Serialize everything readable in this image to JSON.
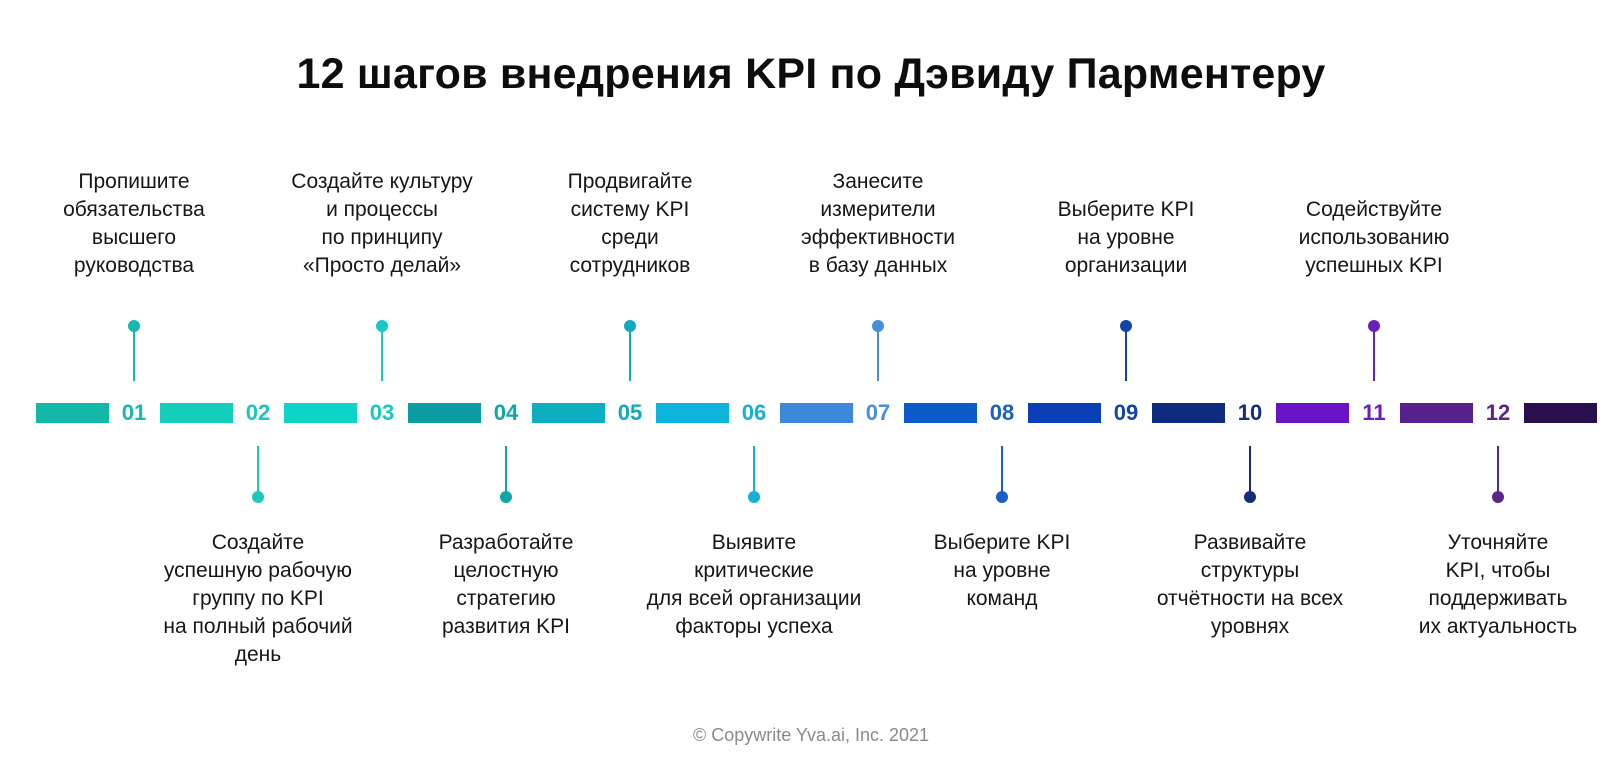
{
  "title": "12 шагов внедрения KPI по Дэвиду Парментеру",
  "footer": "© Copywrite Yva.ai, Inc. 2021",
  "steps": [
    {
      "number": "01",
      "color": "#16B9AE",
      "segment_color": "#12B8A8",
      "position": "top",
      "lines": [
        "Пропишите",
        "обязательства",
        "высшего",
        "руководства"
      ]
    },
    {
      "number": "02",
      "color": "#1AC7BB",
      "segment_color": "#14CDBD",
      "position": "bottom",
      "lines": [
        "Создайте",
        "успешную рабочую",
        "группу по KPI",
        "на полный рабочий",
        "день"
      ]
    },
    {
      "number": "03",
      "color": "#17C9C2",
      "segment_color": "#0FD3C6",
      "position": "top",
      "lines": [
        "Создайте культуру",
        "и процессы",
        "по принципу",
        "«Просто делай»"
      ]
    },
    {
      "number": "04",
      "color": "#10A5A8",
      "segment_color": "#0B9DA3",
      "position": "bottom",
      "lines": [
        "Разработайте",
        "целостную",
        "стратегию",
        "развития KPI"
      ]
    },
    {
      "number": "05",
      "color": "#11A9BF",
      "segment_color": "#0CAFBF",
      "position": "top",
      "lines": [
        "Продвигайте",
        "систему KPI",
        "среди",
        "сотрудников"
      ]
    },
    {
      "number": "06",
      "color": "#15B0D6",
      "segment_color": "#0CB4DC",
      "position": "bottom",
      "lines": [
        "Выявите",
        "критические",
        "для всей организации",
        "факторы успеха"
      ]
    },
    {
      "number": "07",
      "color": "#4A8ED8",
      "segment_color": "#3E88DB",
      "position": "top",
      "lines": [
        "Занесите",
        "измерители",
        "эффективности",
        "в базу данных"
      ]
    },
    {
      "number": "08",
      "color": "#1A5FC4",
      "segment_color": "#0D5BCB",
      "position": "bottom",
      "lines": [
        "Выберите KPI",
        "на уровне",
        "команд"
      ]
    },
    {
      "number": "09",
      "color": "#1443A8",
      "segment_color": "#0A3FB8",
      "position": "top",
      "lines": [
        "Выберите KPI",
        "на уровне",
        "организации"
      ]
    },
    {
      "number": "10",
      "color": "#132F7A",
      "segment_color": "#0F2B7F",
      "position": "bottom",
      "lines": [
        "Развивайте",
        "структуры",
        "отчётности на всех",
        "уровнях"
      ]
    },
    {
      "number": "11",
      "color": "#6A1FB8",
      "segment_color": "#6814C4",
      "position": "top",
      "lines": [
        "Содействуйте",
        "использованию",
        "успешных KPI"
      ]
    },
    {
      "number": "12",
      "color": "#5A2688",
      "segment_color": "#58218E",
      "position": "bottom",
      "lines": [
        "Уточняйте",
        "KPI, чтобы",
        "поддерживать",
        "их актуальность"
      ]
    }
  ],
  "end_segment_color": "#2A0F4F"
}
